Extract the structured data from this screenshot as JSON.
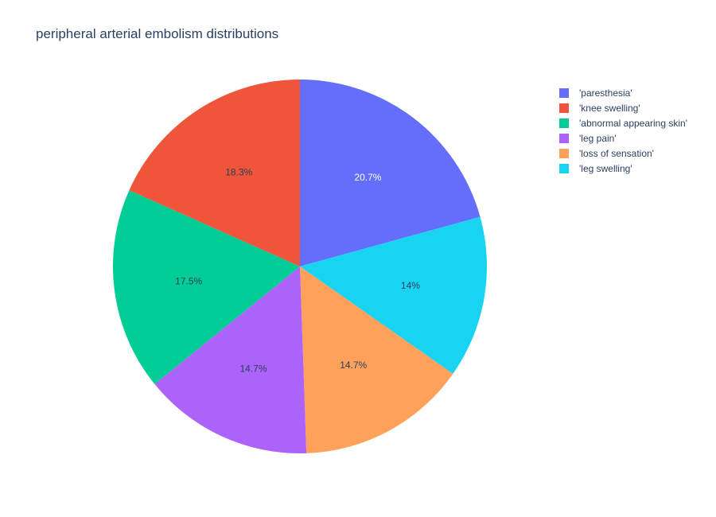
{
  "chart_data": {
    "type": "pie",
    "title": "peripheral arterial embolism distributions",
    "legend_position": "top-right",
    "direction": "clockwise",
    "start_angle_deg": 0,
    "slices": [
      {
        "label": "'paresthesia'",
        "value": 20.7,
        "text": "20.7%",
        "color": "#636efa",
        "text_color": "#ffffff"
      },
      {
        "label": "'leg swelling'",
        "value": 14.0,
        "text": "14%",
        "color": "#19d3f3",
        "text_color": "#2a3f5f"
      },
      {
        "label": "'loss of sensation'",
        "value": 14.7,
        "text": "14.7%",
        "color": "#ffa15a",
        "text_color": "#2a3f5f"
      },
      {
        "label": "'leg pain'",
        "value": 14.7,
        "text": "14.7%",
        "color": "#ab63fa",
        "text_color": "#2a3f5f"
      },
      {
        "label": "'abnormal appearing skin'",
        "value": 17.5,
        "text": "17.5%",
        "color": "#00cc96",
        "text_color": "#2a3f5f"
      },
      {
        "label": "'knee swelling'",
        "value": 18.3,
        "text": "18.3%",
        "color": "#ef553b",
        "text_color": "#2a3f5f"
      }
    ],
    "legend_order": [
      "'paresthesia'",
      "'knee swelling'",
      "'abnormal appearing skin'",
      "'leg pain'",
      "'loss of sensation'",
      "'leg swelling'"
    ]
  }
}
